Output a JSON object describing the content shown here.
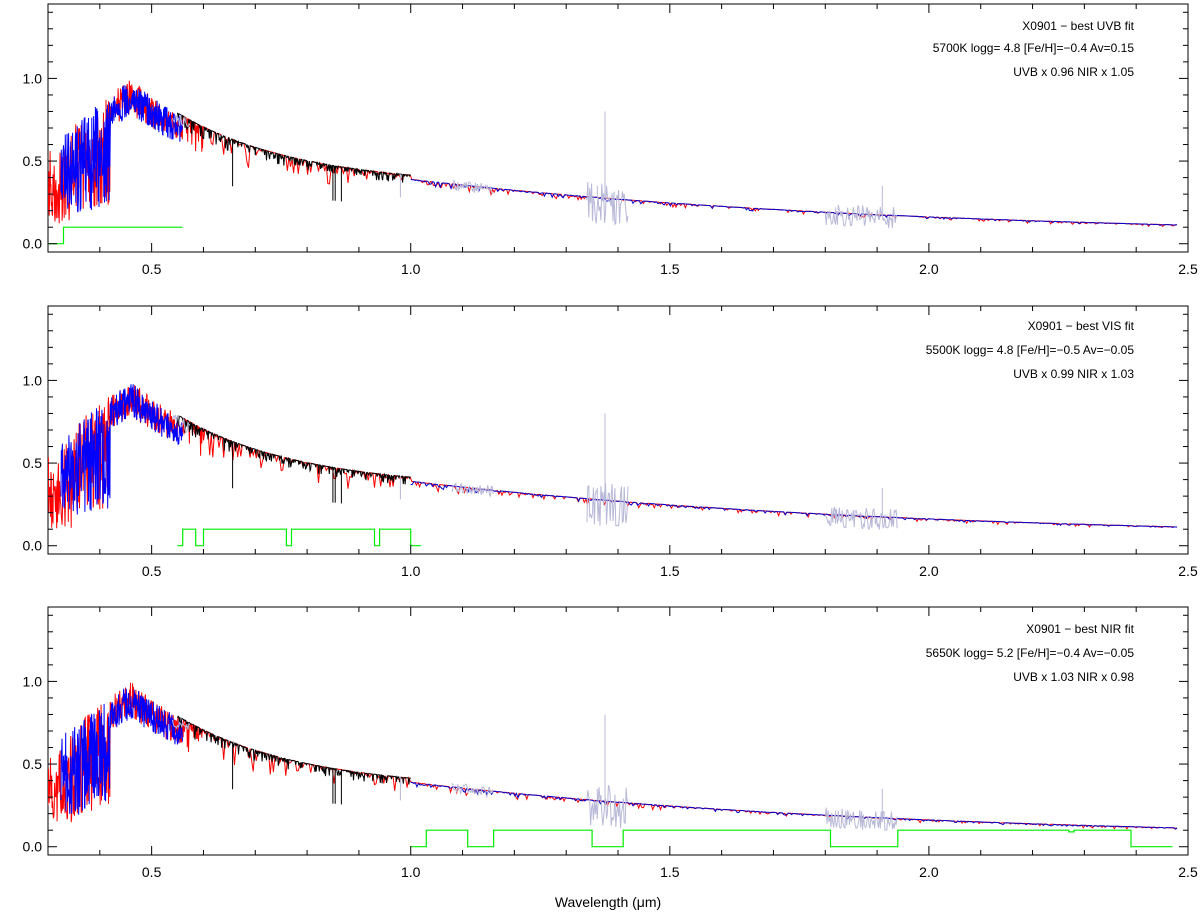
{
  "chart_data": [
    {
      "type": "line",
      "panel": "top",
      "annotations": [
        "X0901 − best UVB fit",
        "5700K logg= 4.8 [Fe/H]=−0.4 Av=0.15",
        "UVB x 0.96  NIR x 1.05"
      ],
      "xlim": [
        0.3,
        2.5
      ],
      "ylim": [
        -0.05,
        1.45
      ],
      "x_ticks": [
        0.5,
        1.0,
        1.5,
        2.0,
        2.5
      ],
      "x_tick_labels": [
        "0.5",
        "1.0",
        "1.5",
        "2.0",
        "2.5"
      ],
      "y_ticks": [
        0.0,
        0.5,
        1.0
      ],
      "y_tick_labels": [
        "0.0",
        "0.5",
        "1.0"
      ],
      "mask": [
        [
          0.3,
          0.0
        ],
        [
          0.33,
          0.0
        ],
        [
          0.33,
          0.1
        ],
        [
          0.56,
          0.1
        ]
      ]
    },
    {
      "type": "line",
      "panel": "middle",
      "annotations": [
        "X0901 − best VIS fit",
        "5500K logg= 4.8 [Fe/H]=−0.5 Av=−0.05",
        "UVB x 0.99  NIR x 1.03"
      ],
      "xlim": [
        0.3,
        2.5
      ],
      "ylim": [
        -0.05,
        1.45
      ],
      "x_ticks": [
        0.5,
        1.0,
        1.5,
        2.0,
        2.5
      ],
      "x_tick_labels": [
        "0.5",
        "1.0",
        "1.5",
        "2.0",
        "2.5"
      ],
      "y_ticks": [
        0.0,
        0.5,
        1.0
      ],
      "y_tick_labels": [
        "0.0",
        "0.5",
        "1.0"
      ],
      "mask": [
        [
          0.55,
          0.0
        ],
        [
          0.56,
          0.0
        ],
        [
          0.56,
          0.1
        ],
        [
          0.585,
          0.1
        ],
        [
          0.585,
          0.0
        ],
        [
          0.6,
          0.0
        ],
        [
          0.6,
          0.1
        ],
        [
          0.76,
          0.1
        ],
        [
          0.76,
          0.0
        ],
        [
          0.77,
          0.0
        ],
        [
          0.77,
          0.1
        ],
        [
          0.93,
          0.1
        ],
        [
          0.93,
          0.0
        ],
        [
          0.94,
          0.0
        ],
        [
          0.94,
          0.1
        ],
        [
          1.0,
          0.1
        ],
        [
          1.0,
          0.0
        ],
        [
          1.02,
          0.0
        ]
      ]
    },
    {
      "type": "line",
      "panel": "bottom",
      "xlabel": "Wavelength (μm)",
      "annotations": [
        "X0901 − best NIR fit",
        "5650K logg= 5.2 [Fe/H]=−0.4 Av=−0.05",
        "UVB x 1.03  NIR x 0.98"
      ],
      "xlim": [
        0.3,
        2.5
      ],
      "ylim": [
        -0.05,
        1.45
      ],
      "x_ticks": [
        0.5,
        1.0,
        1.5,
        2.0,
        2.5
      ],
      "x_tick_labels": [
        "0.5",
        "1.0",
        "1.5",
        "2.0",
        "2.5"
      ],
      "y_ticks": [
        0.0,
        0.5,
        1.0
      ],
      "y_tick_labels": [
        "0.0",
        "0.5",
        "1.0"
      ],
      "mask": [
        [
          1.0,
          0.0
        ],
        [
          1.03,
          0.0
        ],
        [
          1.03,
          0.1
        ],
        [
          1.11,
          0.1
        ],
        [
          1.11,
          0.0
        ],
        [
          1.16,
          0.0
        ],
        [
          1.16,
          0.1
        ],
        [
          1.35,
          0.1
        ],
        [
          1.35,
          0.0
        ],
        [
          1.41,
          0.0
        ],
        [
          1.41,
          0.1
        ],
        [
          1.81,
          0.1
        ],
        [
          1.81,
          0.0
        ],
        [
          1.94,
          0.0
        ],
        [
          1.94,
          0.1
        ],
        [
          2.27,
          0.1
        ],
        [
          2.27,
          0.09
        ],
        [
          2.28,
          0.09
        ],
        [
          2.28,
          0.1
        ],
        [
          2.39,
          0.1
        ],
        [
          2.39,
          0.0
        ],
        [
          2.47,
          0.0
        ]
      ]
    }
  ],
  "series_colors": {
    "model": "#ff0000",
    "uvb": "#0000ff",
    "vis": "#000000",
    "nir": "#0000cc",
    "telluric": "#b8b8d8",
    "mask": "#00ee00"
  }
}
